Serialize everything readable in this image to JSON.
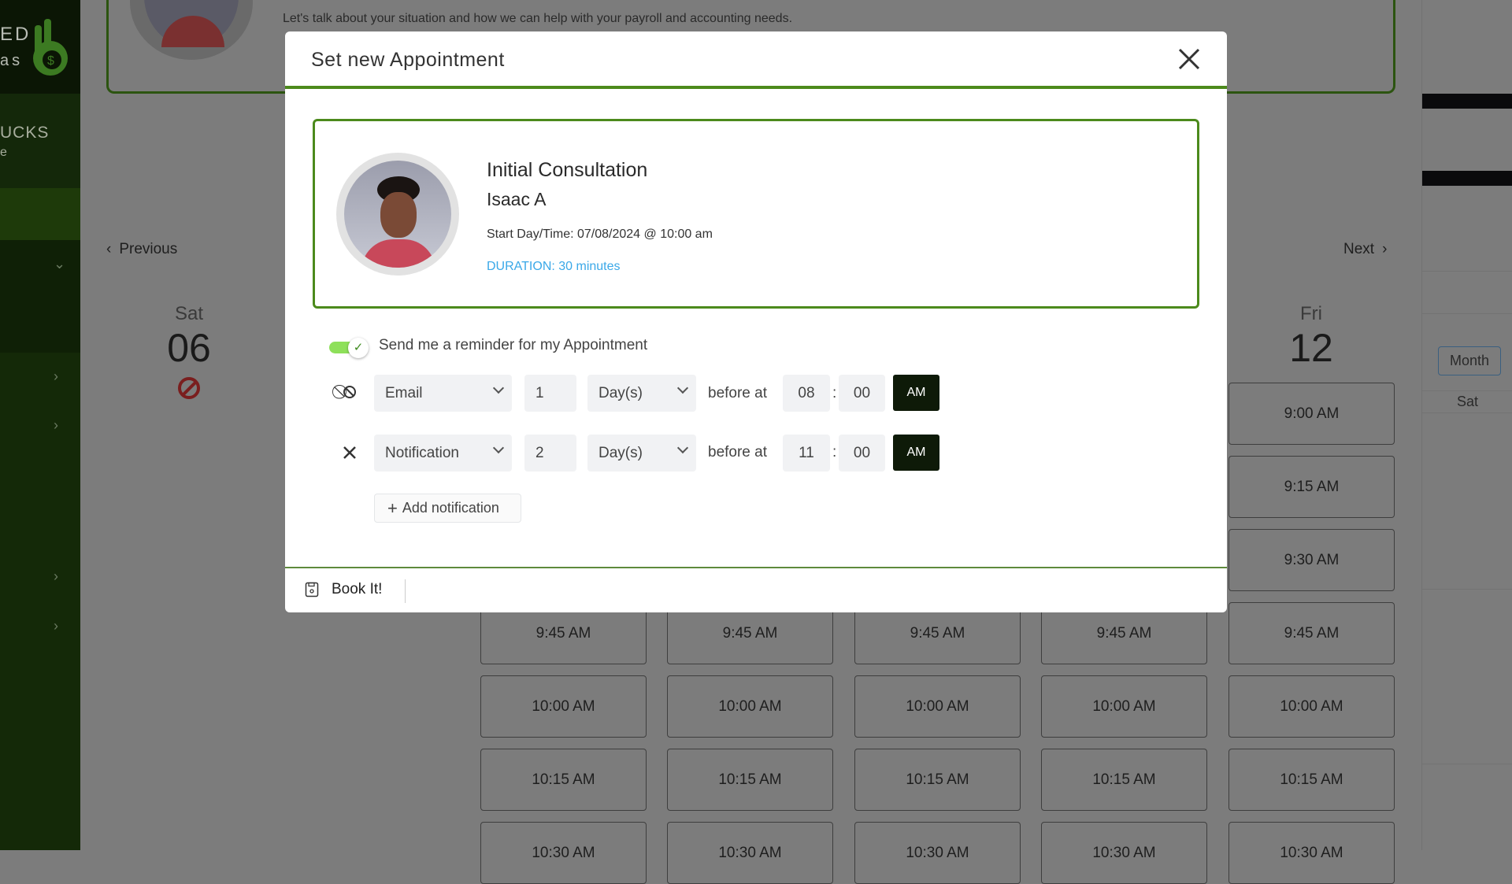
{
  "sidebar": {
    "brand_partial_1": "ED",
    "brand_partial_2": "as",
    "section_partial_1": "UCKS",
    "section_partial_2": "e"
  },
  "top_card": {
    "message": "Let's talk about your situation and how we can help with your payroll and accounting needs."
  },
  "calendar": {
    "previous_label": "Previous",
    "next_label": "Next",
    "days": [
      {
        "name": "Sat",
        "date": "06",
        "unavailable": true
      },
      {
        "name": "Fri",
        "date": "12"
      }
    ],
    "time_slots": [
      "9:00 AM",
      "9:15 AM",
      "9:30 AM",
      "9:45 AM",
      "10:00 AM",
      "10:15 AM",
      "10:30 AM"
    ]
  },
  "right_panel": {
    "month_button": "Month",
    "day_header": "Sat"
  },
  "modal": {
    "title": "Set new Appointment",
    "appointment": {
      "title": "Initial Consultation",
      "name": "Isaac A",
      "start": "Start Day/Time: 07/08/2024 @ 10:00 am",
      "duration": "DURATION: 30 minutes"
    },
    "reminder_toggle": {
      "label": "Send me a reminder for my Appointment",
      "on": true
    },
    "reminders": [
      {
        "icon": "ban-icon",
        "channel": "Email",
        "amount": "1",
        "unit": "Day(s)",
        "before_label": "before at",
        "hour": "08",
        "minute": "00",
        "period": "AM"
      },
      {
        "icon": "close-icon",
        "channel": "Notification",
        "amount": "2",
        "unit": "Day(s)",
        "before_label": "before at",
        "hour": "11",
        "minute": "00",
        "period": "AM"
      }
    ],
    "add_notification": "Add notification",
    "book_button": "Book It!"
  },
  "colors": {
    "accent_green": "#4c8a1c",
    "duration_blue": "#3aa8e8",
    "am_button": "#0e1a08"
  }
}
